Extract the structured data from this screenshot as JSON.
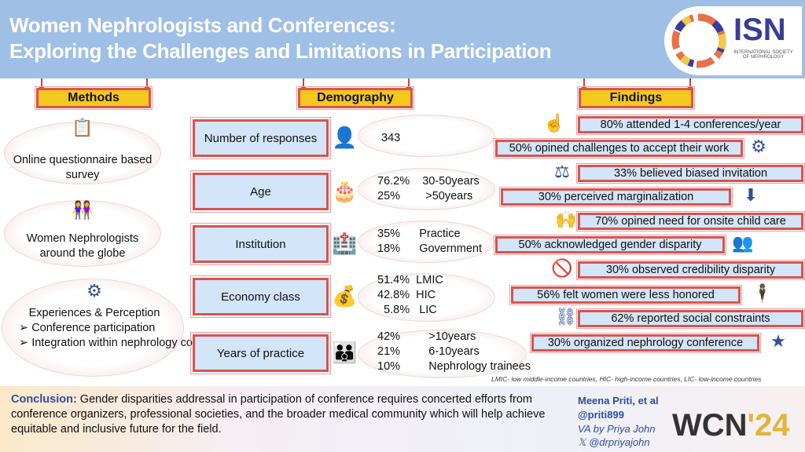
{
  "header": {
    "title_line1": "Women Nephrologists and Conferences:",
    "title_line2": "Exploring the Challenges and Limitations in Participation"
  },
  "logo": {
    "text": "ISN",
    "subtitle": "INTERNATIONAL SOCIETY OF NEPHROLOGY"
  },
  "sections": {
    "methods": "Methods",
    "demography": "Demography",
    "findings": "Findings"
  },
  "methods": [
    {
      "icon": "questionnaire-icon",
      "text": "Online questionnaire based survey"
    },
    {
      "icon": "women-icon",
      "text": "Women Nephrologists around the globe"
    },
    {
      "icon": "network-icon",
      "text": "Experiences & Perception",
      "bullets": [
        "Conference participation",
        "Integration within nephrology community"
      ]
    }
  ],
  "demography": [
    {
      "label": "Number of responses",
      "icon": "speech-person-icon",
      "value": "343"
    },
    {
      "label": "Age",
      "icon": "cake-icon",
      "value": "76.2%    30-50years\n25%        >50years"
    },
    {
      "label": "Institution",
      "icon": "hospital-icon",
      "value": "35%      Practice\n18%      Government"
    },
    {
      "label": "Economy class",
      "icon": "money-hand-icon",
      "value": "51.4%  LMIC\n42.8%  HIC\n  5.8%   LIC"
    },
    {
      "label": "Years of practice",
      "icon": "group-icon",
      "value": "42%         >10years\n21%         6-10years\n10%         Nephrology trainees"
    }
  ],
  "findings": [
    "80% attended 1-4 conferences/year",
    "50% opined challenges to accept their work",
    "33% believed biased invitation",
    "30% perceived marginalization",
    "70% opined need for onsite child care",
    "50% acknowledged gender disparity",
    "30% observed credibility disparity",
    "56% felt women were less honored",
    "62% reported social constraints",
    "30% organized nephrology conference"
  ],
  "footnote": "LMIC- low middle-income countries, HIC- high-income countries, LIC- low-income countries",
  "conclusion": {
    "label": "Conclusion:",
    "text": " Gender disparities addressal in participation of conference requires concerted efforts from conference organizers, professional societies, and the broader medical community which will help achieve equitable and inclusive future for the field."
  },
  "authors": {
    "name": "Meena Priti, et al",
    "handle": "@priti899",
    "va": "VA by Priya John",
    "x_handle": "@drpriyajohn"
  },
  "wcn": {
    "text": "WCN",
    "year": "'24"
  },
  "colors": {
    "header": "#9fbfe6",
    "tab": "#f5c81d",
    "border": "#d9534f",
    "box": "#d3e5f8",
    "icon": "#2f4f9a"
  }
}
